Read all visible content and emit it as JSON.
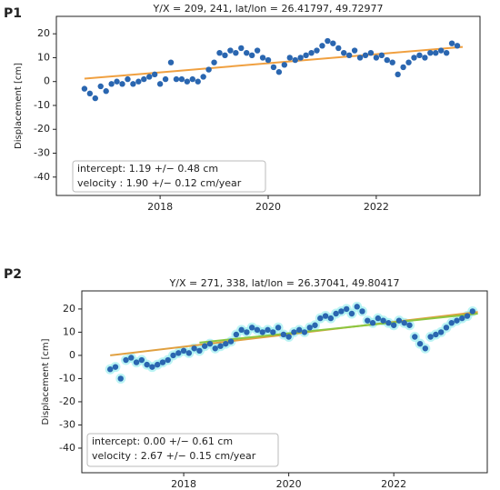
{
  "chart_data": [
    {
      "type": "scatter",
      "label": "P1",
      "title": "Y/X = 209, 241, lat/lon = 26.41797, 49.72977",
      "ylabel": "Displacement [cm]",
      "x": [
        2016.6,
        2016.7,
        2016.8,
        2016.9,
        2017.0,
        2017.1,
        2017.2,
        2017.3,
        2017.4,
        2017.5,
        2017.6,
        2017.7,
        2017.8,
        2017.9,
        2018.0,
        2018.1,
        2018.2,
        2018.3,
        2018.4,
        2018.5,
        2018.6,
        2018.7,
        2018.8,
        2018.9,
        2019.0,
        2019.1,
        2019.2,
        2019.3,
        2019.4,
        2019.5,
        2019.6,
        2019.7,
        2019.8,
        2019.9,
        2020.0,
        2020.1,
        2020.2,
        2020.3,
        2020.4,
        2020.5,
        2020.6,
        2020.7,
        2020.8,
        2020.9,
        2021.0,
        2021.1,
        2021.2,
        2021.3,
        2021.4,
        2021.5,
        2021.6,
        2021.7,
        2021.8,
        2021.9,
        2022.0,
        2022.1,
        2022.2,
        2022.3,
        2022.4,
        2022.5,
        2022.6,
        2022.7,
        2022.8,
        2022.9,
        2023.0,
        2023.1,
        2023.2,
        2023.3,
        2023.4,
        2023.5
      ],
      "values": [
        -3,
        -5,
        -7,
        -2,
        -4,
        -1,
        0,
        -1,
        1,
        -1,
        0,
        1,
        2,
        3,
        -1,
        1,
        8,
        1,
        1,
        0,
        1,
        0,
        2,
        5,
        8,
        12,
        11,
        13,
        12,
        14,
        12,
        11,
        13,
        10,
        9,
        6,
        4,
        7,
        10,
        9,
        10,
        11,
        12,
        13,
        15,
        17,
        16,
        14,
        12,
        11,
        13,
        10,
        11,
        12,
        10,
        11,
        9,
        8,
        3,
        6,
        8,
        10,
        11,
        10,
        12,
        12,
        13,
        12,
        16,
        15
      ],
      "color": "#2a66b0",
      "fits": [
        {
          "x": [
            2016.6,
            2023.6
          ],
          "values": [
            1.2,
            14.5
          ],
          "color": "#f0a040"
        }
      ],
      "annotations": [
        "intercept: 1.19 +/− 0.48 cm",
        "velocity : 1.90 +/− 0.12 cm/year"
      ],
      "xlim": [
        2016.08,
        2023.92
      ],
      "xticks": [
        2018,
        2020,
        2022
      ],
      "ylim": [
        -47.7,
        27.3
      ],
      "yticks": [
        -40,
        -30,
        -20,
        -10,
        0,
        10,
        20
      ]
    },
    {
      "type": "scatter",
      "label": "P2",
      "title": "Y/X = 271, 338, lat/lon = 26.37041, 49.80417",
      "ylabel": "Displacement [cm]",
      "x": [
        2016.6,
        2016.7,
        2016.8,
        2016.9,
        2017.0,
        2017.1,
        2017.2,
        2017.3,
        2017.4,
        2017.5,
        2017.6,
        2017.7,
        2017.8,
        2017.9,
        2018.0,
        2018.1,
        2018.2,
        2018.3,
        2018.4,
        2018.5,
        2018.6,
        2018.7,
        2018.8,
        2018.9,
        2019.0,
        2019.1,
        2019.2,
        2019.3,
        2019.4,
        2019.5,
        2019.6,
        2019.7,
        2019.8,
        2019.9,
        2020.0,
        2020.1,
        2020.2,
        2020.3,
        2020.4,
        2020.5,
        2020.6,
        2020.7,
        2020.8,
        2020.9,
        2021.0,
        2021.1,
        2021.2,
        2021.3,
        2021.4,
        2021.5,
        2021.6,
        2021.7,
        2021.8,
        2021.9,
        2022.0,
        2022.1,
        2022.2,
        2022.3,
        2022.4,
        2022.5,
        2022.6,
        2022.7,
        2022.8,
        2022.9,
        2023.0,
        2023.1,
        2023.2,
        2023.3,
        2023.4,
        2023.5
      ],
      "values": [
        -6,
        -5,
        -10,
        -2,
        -1,
        -3,
        -2,
        -4,
        -5,
        -4,
        -3,
        -2,
        0,
        1,
        2,
        1,
        3,
        2,
        4,
        5,
        3,
        4,
        5,
        6,
        9,
        11,
        10,
        12,
        11,
        10,
        11,
        10,
        12,
        9,
        8,
        10,
        11,
        10,
        12,
        13,
        16,
        17,
        16,
        18,
        19,
        20,
        18,
        21,
        19,
        15,
        14,
        16,
        15,
        14,
        13,
        15,
        14,
        13,
        8,
        5,
        3,
        8,
        9,
        10,
        12,
        14,
        15,
        16,
        17,
        19
      ],
      "color": "#2a66b0",
      "halo_color": "#9ff0f0",
      "fits": [
        {
          "x": [
            2016.6,
            2023.6
          ],
          "values": [
            0,
            18.7
          ],
          "color": "#e0a040"
        },
        {
          "x": [
            2018.3,
            2023.6
          ],
          "values": [
            5.5,
            18
          ],
          "color": "#8cc63f"
        }
      ],
      "annotations": [
        "intercept: 0.00 +/− 0.61 cm",
        "velocity : 2.67 +/− 0.15 cm/year"
      ],
      "xlim": [
        2016.06,
        2023.78
      ],
      "xticks": [
        2018,
        2020,
        2022
      ],
      "ylim": [
        -50.6,
        27.8
      ],
      "yticks": [
        -40,
        -30,
        -20,
        -10,
        0,
        10,
        20
      ]
    }
  ]
}
